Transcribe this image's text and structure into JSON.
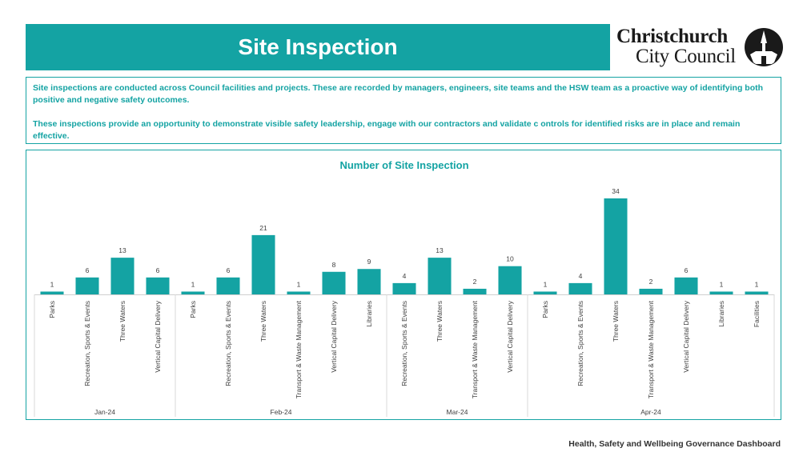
{
  "header": {
    "title": "Site Inspection"
  },
  "logo": {
    "line1": "Christchurch",
    "line2": "City Council"
  },
  "intro": {
    "paragraph1": "Site inspections are conducted across Council facilities and projects. These are recorded by managers, engineers, site teams and the HSW team as a proactive way of identifying both positive and negative safety outcomes.",
    "paragraph2": "These inspections provide an opportunity to demonstrate visible safety leadership, engage with our contractors and validate c ontrols for identified risks are in place and remain effective."
  },
  "footer": {
    "text": "Health, Safety and Wellbeing Governance Dashboard"
  },
  "colors": {
    "accent": "#14a3a3",
    "text_dark": "#333333"
  },
  "chart_data": {
    "type": "bar",
    "title": "Number of Site Inspection",
    "bar_color": "#14a3a3",
    "ylim": [
      0,
      34
    ],
    "groups": [
      {
        "label": "Jan-24",
        "categories": [
          "Parks",
          "Recreation, Sports & Events",
          "Three Waters",
          "Vertical Capital Delivery"
        ],
        "values": [
          1,
          6,
          13,
          6
        ]
      },
      {
        "label": "Feb-24",
        "categories": [
          "Parks",
          "Recreation, Sports & Events",
          "Three Waters",
          "Transport & Waste Management",
          "Vertical Capital Delivery",
          "Libraries"
        ],
        "values": [
          1,
          6,
          21,
          1,
          8,
          9
        ]
      },
      {
        "label": "Mar-24",
        "categories": [
          "Recreation, Sports & Events",
          "Three Waters",
          "Transport & Waste Management",
          "Vertical Capital Delivery"
        ],
        "values": [
          4,
          13,
          2,
          10
        ]
      },
      {
        "label": "Apr-24",
        "categories": [
          "Parks",
          "Recreation, Sports & Events",
          "Three Waters",
          "Transport & Waste Management",
          "Vertical Capital Delivery",
          "Libraries",
          "Facilities"
        ],
        "values": [
          1,
          4,
          34,
          2,
          6,
          1,
          1
        ]
      }
    ]
  }
}
